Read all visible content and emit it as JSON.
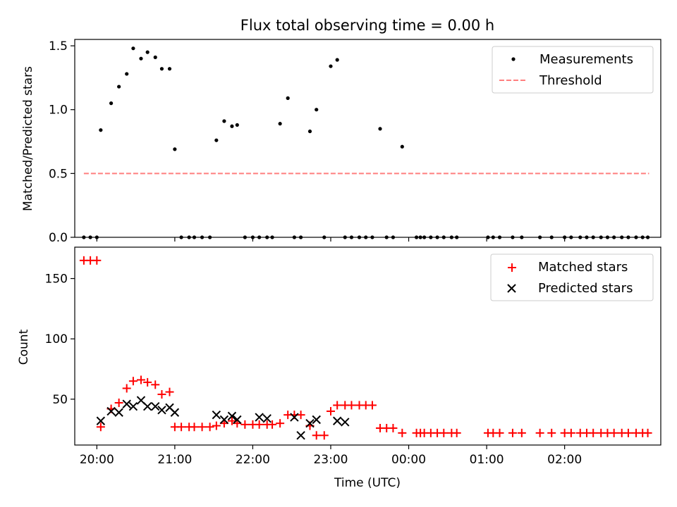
{
  "chart_data": [
    {
      "type": "scatter",
      "title": "Flux total observing time = 0.00 h",
      "xlabel": "",
      "ylabel": "Matched/Predicted stars",
      "ylim": [
        0,
        1.55
      ],
      "yticks": [
        "0.0",
        "0.5",
        "1.0",
        "1.5"
      ],
      "xlim": [
        "19:43",
        "03:14"
      ],
      "legend_position": "top-right",
      "series": [
        {
          "name": "Measurements",
          "marker": "dot",
          "color": "#000000",
          "x": [
            "19:50",
            "19:55",
            "20:00",
            "20:03",
            "20:11",
            "20:17",
            "20:23",
            "20:28",
            "20:34",
            "20:39",
            "20:45",
            "20:50",
            "20:56",
            "21:00",
            "21:05",
            "21:11",
            "21:15",
            "21:21",
            "21:27",
            "21:32",
            "21:38",
            "21:44",
            "21:48",
            "21:54",
            "22:00",
            "22:05",
            "22:11",
            "22:15",
            "22:21",
            "22:27",
            "22:32",
            "22:37",
            "22:44",
            "22:49",
            "22:55",
            "23:00",
            "23:05",
            "23:11",
            "23:16",
            "23:22",
            "23:27",
            "23:32",
            "23:38",
            "23:43",
            "23:48",
            "23:55",
            "00:06",
            "00:09",
            "00:12",
            "00:17",
            "00:22",
            "00:27",
            "00:33",
            "00:37",
            "01:01",
            "01:05",
            "01:10",
            "01:20",
            "01:27",
            "01:41",
            "01:50",
            "02:00",
            "02:05",
            "02:12",
            "02:17",
            "02:22",
            "02:28",
            "02:33",
            "02:38",
            "02:44",
            "02:49",
            "02:55",
            "03:00",
            "03:04"
          ],
          "y": [
            0,
            0,
            0,
            0.84,
            1.05,
            1.18,
            1.28,
            1.48,
            1.4,
            1.45,
            1.41,
            1.32,
            1.32,
            0.69,
            0,
            0,
            0,
            0,
            0,
            0.76,
            0.91,
            0.87,
            0.88,
            0,
            0,
            0,
            0,
            0,
            0.89,
            1.09,
            0,
            0,
            0.83,
            1.0,
            0,
            1.34,
            1.39,
            0,
            0,
            0,
            0,
            0,
            0.85,
            0,
            0,
            0.71,
            0,
            0,
            0,
            0,
            0,
            0,
            0,
            0,
            0,
            0,
            0,
            0,
            0,
            0,
            0,
            0,
            0,
            0,
            0,
            0,
            0,
            0,
            0,
            0,
            0,
            0,
            0,
            0
          ]
        },
        {
          "name": "Threshold",
          "marker": "dashed-line",
          "color": "#ff7f7f",
          "x": [
            "19:50",
            "03:05"
          ],
          "y": [
            0.5,
            0.5
          ]
        }
      ]
    },
    {
      "type": "scatter",
      "title": "",
      "xlabel": "Time (UTC)",
      "ylabel": "Count",
      "ylim": [
        12,
        176
      ],
      "yticks": [
        "50",
        "100",
        "150"
      ],
      "xticks": [
        "20:00",
        "21:00",
        "22:00",
        "23:00",
        "00:00",
        "01:00",
        "02:00"
      ],
      "legend_position": "top-right",
      "series": [
        {
          "name": "Matched stars",
          "marker": "plus",
          "color": "#ff0000",
          "x": [
            "19:50",
            "19:55",
            "20:00",
            "20:03",
            "20:11",
            "20:17",
            "20:23",
            "20:28",
            "20:34",
            "20:39",
            "20:45",
            "20:50",
            "20:56",
            "21:00",
            "21:05",
            "21:11",
            "21:15",
            "21:21",
            "21:27",
            "21:32",
            "21:38",
            "21:44",
            "21:48",
            "21:54",
            "22:00",
            "22:05",
            "22:11",
            "22:15",
            "22:21",
            "22:27",
            "22:32",
            "22:37",
            "22:44",
            "22:49",
            "22:55",
            "23:00",
            "23:05",
            "23:11",
            "23:16",
            "23:22",
            "23:27",
            "23:32",
            "23:38",
            "23:43",
            "23:48",
            "23:55",
            "00:06",
            "00:09",
            "00:12",
            "00:17",
            "00:22",
            "00:27",
            "00:33",
            "00:37",
            "01:01",
            "01:05",
            "01:10",
            "01:20",
            "01:27",
            "01:41",
            "01:50",
            "02:00",
            "02:05",
            "02:12",
            "02:17",
            "02:22",
            "02:28",
            "02:33",
            "02:38",
            "02:44",
            "02:49",
            "02:55",
            "03:00",
            "03:04"
          ],
          "y": [
            165,
            165,
            165,
            27,
            42,
            47,
            59,
            65,
            66,
            64,
            62,
            54,
            56,
            27,
            27,
            27,
            27,
            27,
            27,
            28,
            30,
            32,
            30,
            29,
            29,
            29,
            29,
            29,
            30,
            37,
            37,
            37,
            28,
            20,
            20,
            40,
            45,
            45,
            45,
            45,
            45,
            45,
            26,
            26,
            26,
            22,
            22,
            22,
            22,
            22,
            22,
            22,
            22,
            22,
            22,
            22,
            22,
            22,
            22,
            22,
            22,
            22,
            22,
            22,
            22,
            22,
            22,
            22,
            22,
            22,
            22,
            22,
            22,
            22
          ]
        },
        {
          "name": "Predicted stars",
          "marker": "x",
          "color": "#000000",
          "x": [
            "20:03",
            "20:11",
            "20:17",
            "20:23",
            "20:28",
            "20:34",
            "20:39",
            "20:45",
            "20:50",
            "20:56",
            "21:00",
            "21:32",
            "21:38",
            "21:44",
            "21:48",
            "22:05",
            "22:11",
            "22:32",
            "22:37",
            "22:44",
            "22:49",
            "23:05",
            "23:11"
          ],
          "y": [
            32,
            40,
            39,
            46,
            44,
            49,
            44,
            44,
            41,
            43,
            39,
            37,
            33,
            36,
            33,
            35,
            34,
            35,
            20,
            30,
            33,
            32,
            31
          ]
        }
      ]
    }
  ],
  "legend": {
    "top": [
      {
        "label": "Measurements",
        "marker": "dot",
        "color": "#000000"
      },
      {
        "label": "Threshold",
        "marker": "dashed-line",
        "color": "#ff7f7f"
      }
    ],
    "bottom": [
      {
        "label": "Matched stars",
        "marker": "plus",
        "color": "#ff0000"
      },
      {
        "label": "Predicted stars",
        "marker": "x",
        "color": "#000000"
      }
    ]
  }
}
